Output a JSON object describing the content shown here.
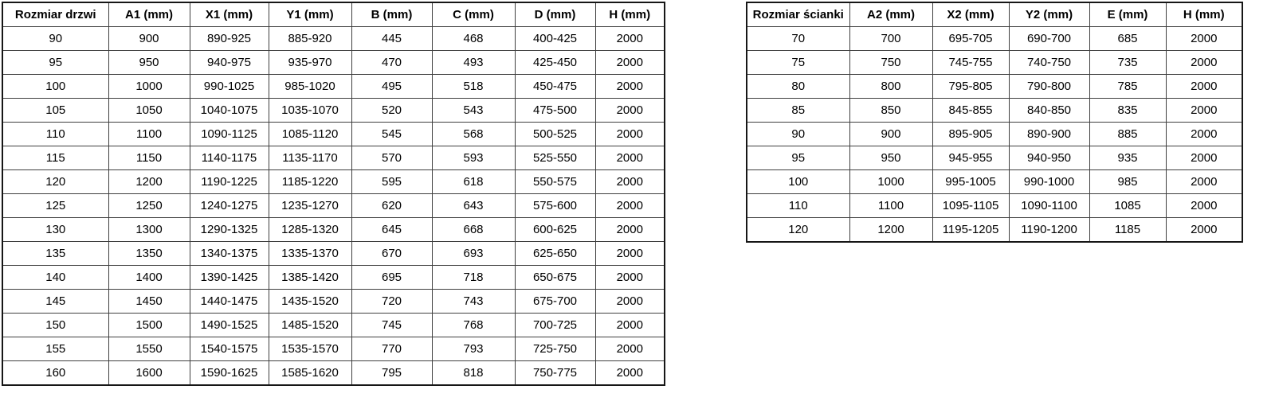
{
  "page": {
    "background_color": "#ffffff",
    "text_color": "#000000",
    "border_color": "#161616"
  },
  "tables": [
    {
      "name": "door-size-table",
      "headers": [
        "Rozmiar drzwi",
        "A1 (mm)",
        "X1 (mm)",
        "Y1 (mm)",
        "B (mm)",
        "C (mm)",
        "D (mm)",
        "H (mm)"
      ],
      "rows": [
        [
          "90",
          "900",
          "890-925",
          "885-920",
          "445",
          "468",
          "400-425",
          "2000"
        ],
        [
          "95",
          "950",
          "940-975",
          "935-970",
          "470",
          "493",
          "425-450",
          "2000"
        ],
        [
          "100",
          "1000",
          "990-1025",
          "985-1020",
          "495",
          "518",
          "450-475",
          "2000"
        ],
        [
          "105",
          "1050",
          "1040-1075",
          "1035-1070",
          "520",
          "543",
          "475-500",
          "2000"
        ],
        [
          "110",
          "1100",
          "1090-1125",
          "1085-1120",
          "545",
          "568",
          "500-525",
          "2000"
        ],
        [
          "115",
          "1150",
          "1140-1175",
          "1135-1170",
          "570",
          "593",
          "525-550",
          "2000"
        ],
        [
          "120",
          "1200",
          "1190-1225",
          "1185-1220",
          "595",
          "618",
          "550-575",
          "2000"
        ],
        [
          "125",
          "1250",
          "1240-1275",
          "1235-1270",
          "620",
          "643",
          "575-600",
          "2000"
        ],
        [
          "130",
          "1300",
          "1290-1325",
          "1285-1320",
          "645",
          "668",
          "600-625",
          "2000"
        ],
        [
          "135",
          "1350",
          "1340-1375",
          "1335-1370",
          "670",
          "693",
          "625-650",
          "2000"
        ],
        [
          "140",
          "1400",
          "1390-1425",
          "1385-1420",
          "695",
          "718",
          "650-675",
          "2000"
        ],
        [
          "145",
          "1450",
          "1440-1475",
          "1435-1520",
          "720",
          "743",
          "675-700",
          "2000"
        ],
        [
          "150",
          "1500",
          "1490-1525",
          "1485-1520",
          "745",
          "768",
          "700-725",
          "2000"
        ],
        [
          "155",
          "1550",
          "1540-1575",
          "1535-1570",
          "770",
          "793",
          "725-750",
          "2000"
        ],
        [
          "160",
          "1600",
          "1590-1625",
          "1585-1620",
          "795",
          "818",
          "750-775",
          "2000"
        ]
      ]
    },
    {
      "name": "wall-size-table",
      "headers": [
        "Rozmiar ścianki",
        "A2 (mm)",
        "X2 (mm)",
        "Y2 (mm)",
        "E (mm)",
        "H (mm)"
      ],
      "rows": [
        [
          "70",
          "700",
          "695-705",
          "690-700",
          "685",
          "2000"
        ],
        [
          "75",
          "750",
          "745-755",
          "740-750",
          "735",
          "2000"
        ],
        [
          "80",
          "800",
          "795-805",
          "790-800",
          "785",
          "2000"
        ],
        [
          "85",
          "850",
          "845-855",
          "840-850",
          "835",
          "2000"
        ],
        [
          "90",
          "900",
          "895-905",
          "890-900",
          "885",
          "2000"
        ],
        [
          "95",
          "950",
          "945-955",
          "940-950",
          "935",
          "2000"
        ],
        [
          "100",
          "1000",
          "995-1005",
          "990-1000",
          "985",
          "2000"
        ],
        [
          "110",
          "1100",
          "1095-1105",
          "1090-1100",
          "1085",
          "2000"
        ],
        [
          "120",
          "1200",
          "1195-1205",
          "1190-1200",
          "1185",
          "2000"
        ]
      ]
    }
  ]
}
